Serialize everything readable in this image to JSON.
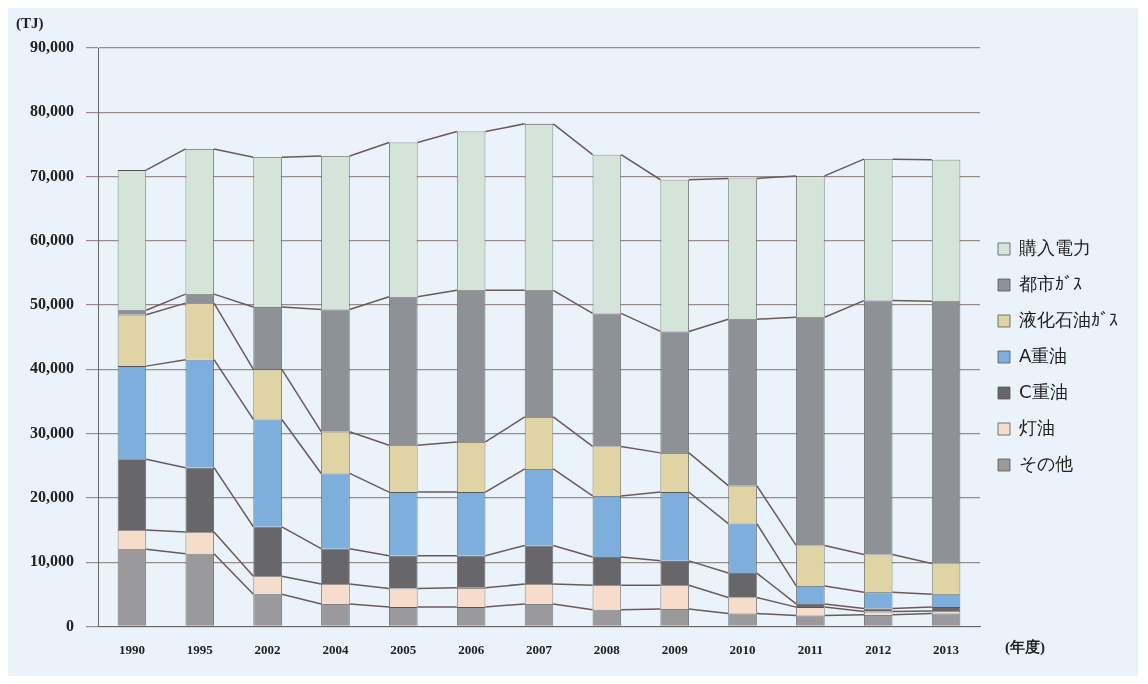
{
  "chart_data": {
    "type": "bar",
    "stacked": true,
    "xlabel": "(年度)",
    "ylabel": "(TJ)",
    "categories": [
      "1990",
      "1995",
      "2002",
      "2004",
      "2005",
      "2006",
      "2007",
      "2008",
      "2009",
      "2010",
      "2011",
      "2012",
      "2013"
    ],
    "series": [
      {
        "name": "その他",
        "color": "#9a9a9d",
        "values": [
          12000,
          11300,
          5000,
          3500,
          3000,
          3000,
          3500,
          2600,
          2700,
          2000,
          1700,
          1800,
          2000
        ]
      },
      {
        "name": "灯油",
        "color": "#f6dccb",
        "values": [
          3000,
          3400,
          2800,
          3100,
          2900,
          3000,
          3100,
          3800,
          3700,
          2500,
          1300,
          500,
          400
        ]
      },
      {
        "name": "C重油",
        "color": "#67676b",
        "values": [
          11000,
          10000,
          7700,
          5500,
          5100,
          5000,
          6000,
          4400,
          3800,
          3800,
          500,
          500,
          600
        ]
      },
      {
        "name": "A重油",
        "color": "#7eaedc",
        "values": [
          14500,
          16800,
          16700,
          11700,
          9900,
          9900,
          11900,
          9500,
          10700,
          7700,
          2800,
          2500,
          2000
        ]
      },
      {
        "name": "液化石油ｶﾞｽ",
        "color": "#e0d3a4",
        "values": [
          8000,
          8800,
          7800,
          6500,
          7300,
          7800,
          8100,
          7700,
          6100,
          5900,
          6300,
          5900,
          4800
        ]
      },
      {
        "name": "都市ｶﾞｽ",
        "color": "#8e9297",
        "values": [
          700,
          1400,
          9700,
          19000,
          23100,
          23600,
          19700,
          20700,
          18900,
          25900,
          35500,
          39500,
          40800
        ]
      },
      {
        "name": "購入電力",
        "color": "#d4e4d8",
        "values": [
          21800,
          22600,
          23300,
          23900,
          24000,
          24700,
          25900,
          24700,
          23600,
          21900,
          22000,
          22000,
          22000
        ]
      }
    ],
    "ylim": [
      0,
      90000
    ],
    "yticks": [
      {
        "value": 0,
        "label": "0"
      },
      {
        "value": 10000,
        "label": "10,000"
      },
      {
        "value": 20000,
        "label": "20,000"
      },
      {
        "value": 30000,
        "label": "30,000"
      },
      {
        "value": 40000,
        "label": "40,000"
      },
      {
        "value": 50000,
        "label": "50,000"
      },
      {
        "value": 60000,
        "label": "60,000"
      },
      {
        "value": 70000,
        "label": "70,000"
      },
      {
        "value": 80000,
        "label": "80,000"
      },
      {
        "value": 90000,
        "label": "90,000"
      }
    ],
    "grid": "y",
    "legend": "right"
  }
}
